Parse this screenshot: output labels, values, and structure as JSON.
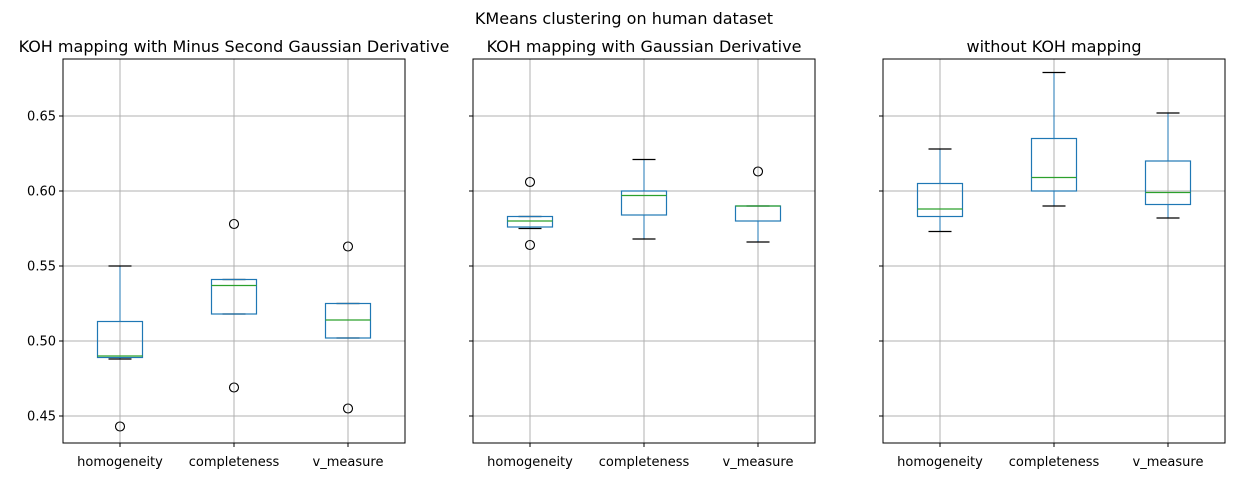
{
  "suptitle": "KMeans clustering on human dataset",
  "colors": {
    "box": "#1f77b4",
    "median": "#2ca02c",
    "whisker": "#000000",
    "flier": "#000000",
    "grid": "#b0b0b0"
  },
  "chart_data": [
    {
      "type": "box",
      "title": "KOH mapping with Minus Second Gaussian Derivative",
      "categories": [
        "homogeneity",
        "completeness",
        "v_measure"
      ],
      "ylim": [
        0.432,
        0.688
      ],
      "yticks": [
        0.45,
        0.5,
        0.55,
        0.6,
        0.65
      ],
      "ytick_labels": [
        "0.45",
        "0.50",
        "0.55",
        "0.60",
        "0.65"
      ],
      "grid": true,
      "boxes": [
        {
          "whislo": 0.488,
          "q1": 0.489,
          "med": 0.49,
          "q3": 0.513,
          "whishi": 0.55,
          "fliers": [
            0.443
          ]
        },
        {
          "whislo": 0.518,
          "q1": 0.518,
          "med": 0.537,
          "q3": 0.541,
          "whishi": 0.541,
          "fliers": [
            0.578,
            0.469
          ]
        },
        {
          "whislo": 0.502,
          "q1": 0.502,
          "med": 0.514,
          "q3": 0.525,
          "whishi": 0.525,
          "fliers": [
            0.563,
            0.455
          ]
        }
      ]
    },
    {
      "type": "box",
      "title": "KOH mapping with Gaussian Derivative",
      "categories": [
        "homogeneity",
        "completeness",
        "v_measure"
      ],
      "ylim": [
        0.432,
        0.688
      ],
      "yticks": [
        0.45,
        0.5,
        0.55,
        0.6,
        0.65
      ],
      "ytick_labels": [
        "",
        "",
        "",
        "",
        ""
      ],
      "grid": true,
      "boxes": [
        {
          "whislo": 0.575,
          "q1": 0.576,
          "med": 0.58,
          "q3": 0.583,
          "whishi": 0.583,
          "fliers": [
            0.606,
            0.564
          ]
        },
        {
          "whislo": 0.568,
          "q1": 0.584,
          "med": 0.597,
          "q3": 0.6,
          "whishi": 0.621,
          "fliers": []
        },
        {
          "whislo": 0.566,
          "q1": 0.58,
          "med": 0.59,
          "q3": 0.59,
          "whishi": 0.59,
          "fliers": [
            0.613
          ]
        }
      ]
    },
    {
      "type": "box",
      "title": "without KOH mapping",
      "categories": [
        "homogeneity",
        "completeness",
        "v_measure"
      ],
      "ylim": [
        0.432,
        0.688
      ],
      "yticks": [
        0.45,
        0.5,
        0.55,
        0.6,
        0.65
      ],
      "ytick_labels": [
        "",
        "",
        "",
        "",
        ""
      ],
      "grid": true,
      "boxes": [
        {
          "whislo": 0.573,
          "q1": 0.583,
          "med": 0.588,
          "q3": 0.605,
          "whishi": 0.628,
          "fliers": []
        },
        {
          "whislo": 0.59,
          "q1": 0.6,
          "med": 0.609,
          "q3": 0.635,
          "whishi": 0.679,
          "fliers": []
        },
        {
          "whislo": 0.582,
          "q1": 0.591,
          "med": 0.599,
          "q3": 0.62,
          "whishi": 0.652,
          "fliers": []
        }
      ]
    }
  ]
}
